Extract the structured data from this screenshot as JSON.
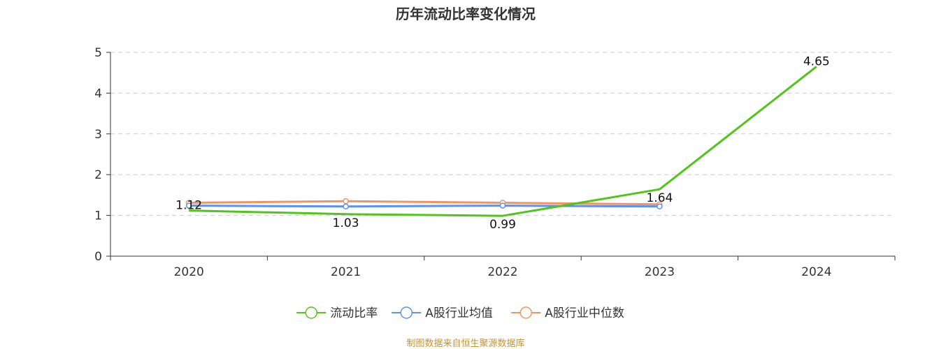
{
  "chart_data": {
    "type": "line",
    "title": "历年流动比率变化情况",
    "xlabel": "",
    "ylabel": "",
    "categories": [
      "2020",
      "2021",
      "2022",
      "2023",
      "2024"
    ],
    "ylim": [
      0,
      5
    ],
    "yticks": [
      "0",
      "1",
      "2",
      "3",
      "4",
      "5"
    ],
    "grid": true,
    "legend_position": "bottom",
    "series": [
      {
        "name": "流动比率",
        "color": "#52c41a",
        "values": [
          1.12,
          1.03,
          0.99,
          1.64,
          4.65
        ],
        "labels": [
          "1.12",
          "1.03",
          "0.99",
          "1.64",
          "4.65"
        ],
        "show_labels": true
      },
      {
        "name": "A股行业均值",
        "color": "#5b8ff9",
        "values": [
          1.24,
          1.22,
          1.24,
          1.22,
          null
        ],
        "show_labels": false
      },
      {
        "name": "A股行业中位数",
        "color": "#f4935d",
        "values": [
          1.31,
          1.35,
          1.31,
          1.27,
          null
        ],
        "show_labels": false
      }
    ],
    "source": "制图数据来自恒生聚源数据库"
  }
}
